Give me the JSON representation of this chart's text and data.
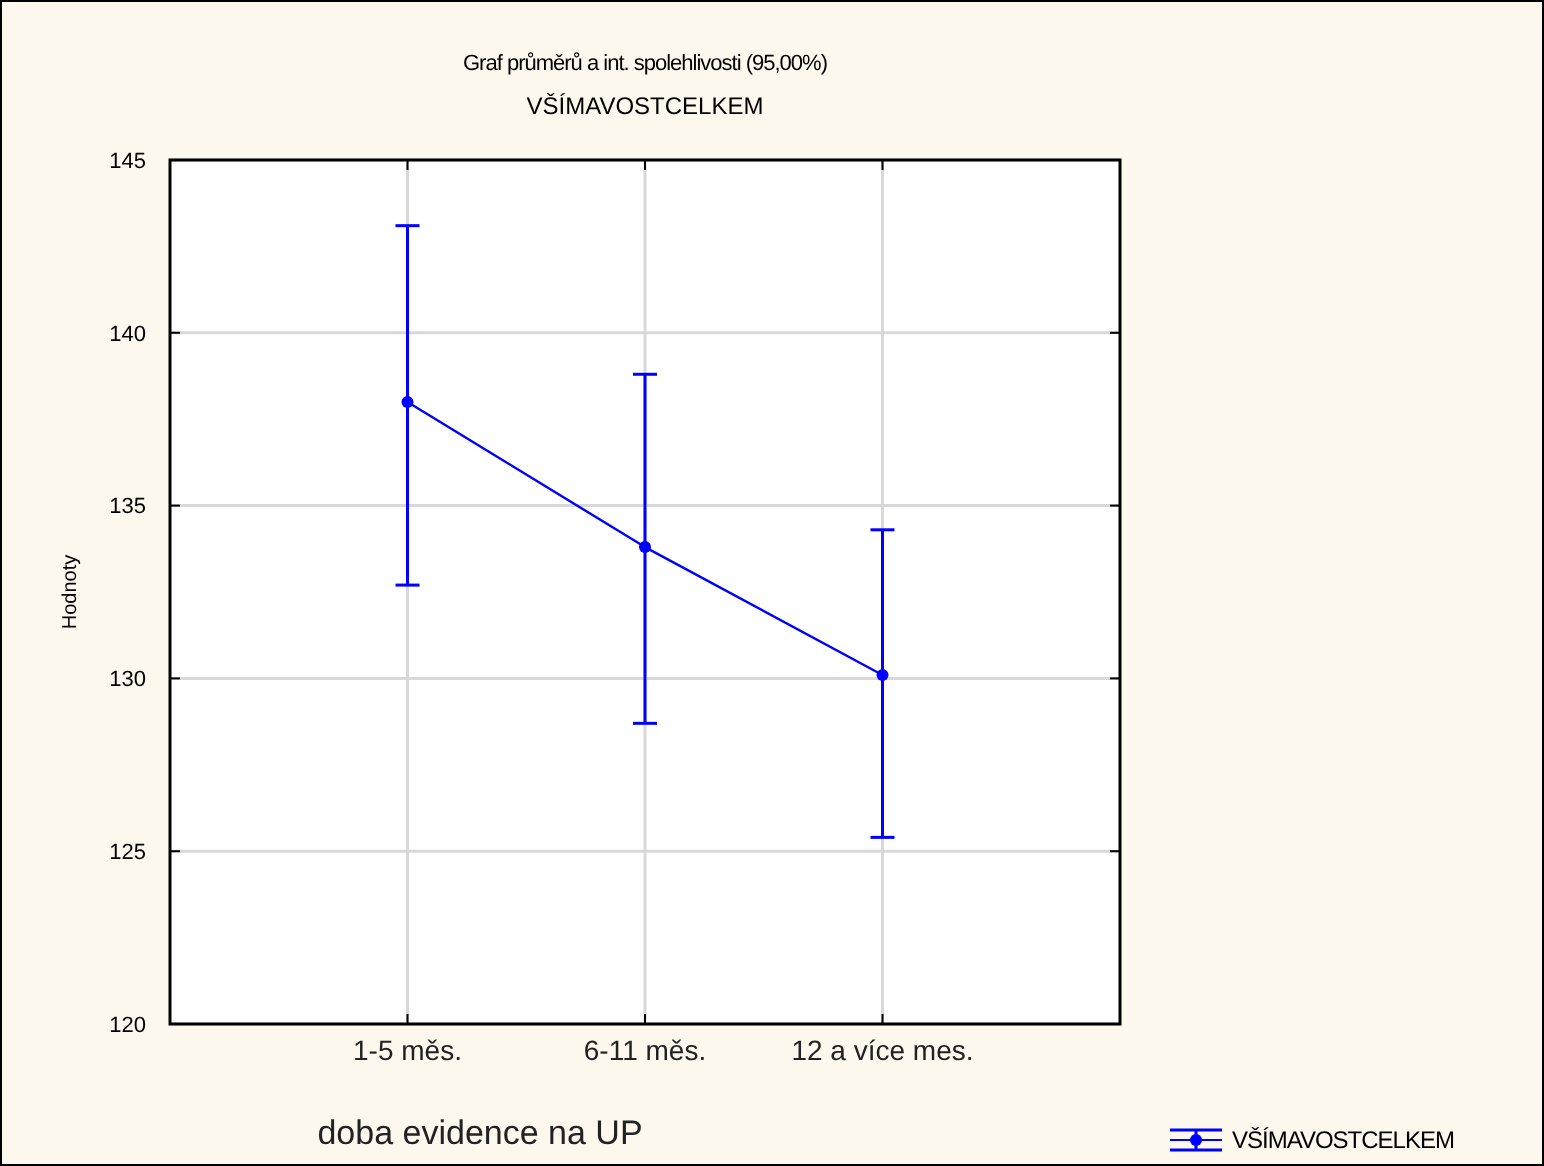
{
  "chart_data": {
    "type": "line",
    "title": "Graf průměrů a int. spolehlivosti (95,00%)",
    "subtitle": "VŠÍMAVOSTCELKEM",
    "xlabel": "doba evidence na UP",
    "ylabel": "Hodnoty",
    "categories": [
      "1-5 měs.",
      "6-11 měs.",
      "12 a více mes."
    ],
    "series": [
      {
        "name": "VŠÍMAVOSTCELKEM",
        "color": "#0000ff",
        "values": [
          138.0,
          133.8,
          130.1
        ],
        "errors": [
          [
            132.7,
            143.1
          ],
          [
            128.7,
            138.8
          ],
          [
            125.4,
            134.3
          ]
        ]
      }
    ],
    "ylim": [
      120,
      145
    ],
    "yticks": [
      120,
      125,
      130,
      135,
      140,
      145
    ],
    "grid": true,
    "legend": "bottom right",
    "marker": "circle"
  }
}
